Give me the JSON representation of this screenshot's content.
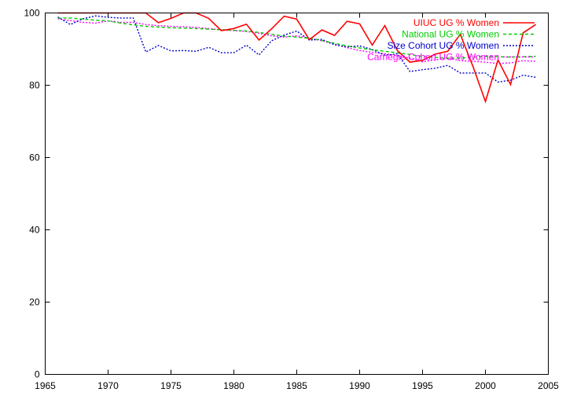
{
  "chart_data": {
    "type": "line",
    "title": "",
    "xlabel": "",
    "ylabel": "",
    "xlim": [
      1965,
      2005
    ],
    "ylim": [
      0,
      100
    ],
    "xticks": [
      1965,
      1970,
      1975,
      1980,
      1985,
      1990,
      1995,
      2000,
      2005
    ],
    "yticks": [
      0,
      20,
      40,
      60,
      80,
      100
    ],
    "grid": false,
    "legend_position": "top-right",
    "series": [
      {
        "name": "UIUC UG % Women",
        "color": "#ff0000",
        "style": "solid",
        "x": [
          1966,
          1967,
          1968,
          1969,
          1970,
          1971,
          1972,
          1973,
          1974,
          1975,
          1976,
          1977,
          1978,
          1979,
          1980,
          1981,
          1982,
          1983,
          1984,
          1985,
          1986,
          1987,
          1988,
          1989,
          1990,
          1991,
          1992,
          1993,
          1994,
          1995,
          1996,
          1997,
          1998,
          1999,
          2000,
          2001,
          2002,
          2003,
          2004
        ],
        "y": [
          100,
          100,
          100,
          100,
          100,
          100,
          100,
          100,
          97.3,
          98.5,
          100,
          100,
          98.5,
          95.1,
          95.7,
          96.9,
          92.5,
          95.6,
          99.1,
          98.3,
          92.6,
          95.3,
          93.8,
          97.7,
          97.0,
          91.1,
          96.5,
          89.6,
          86.4,
          86.9,
          88.6,
          89.4,
          94.1,
          85.3,
          75.5,
          87.0,
          80.2,
          94.5,
          96.8
        ]
      },
      {
        "name": "National UG % Women",
        "color": "#00cc00",
        "style": "dashed",
        "x": [
          1966,
          1967,
          1968,
          1969,
          1970,
          1971,
          1972,
          1973,
          1974,
          1975,
          1976,
          1977,
          1978,
          1979,
          1980,
          1981,
          1982,
          1983,
          1984,
          1985,
          1986,
          1987,
          1988,
          1989,
          1990,
          1991,
          1992,
          1993,
          1994,
          1995,
          1996,
          1997,
          1998,
          1999,
          2000,
          2001,
          2002,
          2003,
          2004
        ],
        "y": [
          98.6,
          98.6,
          98.3,
          98.0,
          97.8,
          97.2,
          96.7,
          96.3,
          96.1,
          95.9,
          95.8,
          95.7,
          95.5,
          95.4,
          95.2,
          95.0,
          94.6,
          94.1,
          93.6,
          93.3,
          93.0,
          92.4,
          91.6,
          90.9,
          90.3,
          89.8,
          89.4,
          89.0,
          88.5,
          88.0,
          87.7,
          87.5,
          87.5,
          87.8,
          88.0,
          87.9,
          87.8,
          87.9,
          88.0
        ]
      },
      {
        "name": "Size Cohort UG % Women",
        "color": "#0000cc",
        "style": "dotted",
        "x": [
          1966,
          1967,
          1968,
          1969,
          1970,
          1971,
          1972,
          1973,
          1974,
          1975,
          1976,
          1977,
          1978,
          1979,
          1980,
          1981,
          1982,
          1983,
          1984,
          1985,
          1986,
          1987,
          1988,
          1989,
          1990,
          1991,
          1992,
          1993,
          1994,
          1995,
          1996,
          1997,
          1998,
          1999,
          2000,
          2001,
          2002,
          2003,
          2004
        ],
        "y": [
          98.9,
          96.8,
          98.4,
          99.2,
          98.8,
          98.6,
          98.6,
          89.2,
          91.0,
          89.5,
          89.6,
          89.4,
          90.5,
          89.0,
          89.0,
          91.1,
          88.4,
          92.3,
          93.9,
          95.0,
          92.5,
          92.7,
          91.2,
          90.6,
          90.9,
          89.9,
          88.3,
          88.7,
          83.8,
          84.3,
          84.7,
          85.5,
          83.4,
          83.4,
          83.4,
          80.9,
          81.4,
          82.8,
          82.2
        ]
      },
      {
        "name": "Carnegie Cohort UG % Women",
        "color": "#ff00ff",
        "style": "dotted",
        "x": [
          1966,
          1967,
          1968,
          1969,
          1970,
          1971,
          1972,
          1973,
          1974,
          1975,
          1976,
          1977,
          1978,
          1979,
          1980,
          1981,
          1982,
          1983,
          1984,
          1985,
          1986,
          1987,
          1988,
          1989,
          1990,
          1991,
          1992,
          1993,
          1994,
          1995,
          1996,
          1997,
          1998,
          1999,
          2000,
          2001,
          2002,
          2003,
          2004
        ],
        "y": [
          98.4,
          97.9,
          97.4,
          97.2,
          97.8,
          97.4,
          97.4,
          96.8,
          96.5,
          96.3,
          96.2,
          96.0,
          95.7,
          95.3,
          95.1,
          94.9,
          94.4,
          93.7,
          93.3,
          93.7,
          93.0,
          92.3,
          91.4,
          90.4,
          89.6,
          89.1,
          88.7,
          88.2,
          87.5,
          86.5,
          87.0,
          87.5,
          86.8,
          86.6,
          86.4,
          86.0,
          86.2,
          86.8,
          86.6
        ]
      }
    ]
  }
}
